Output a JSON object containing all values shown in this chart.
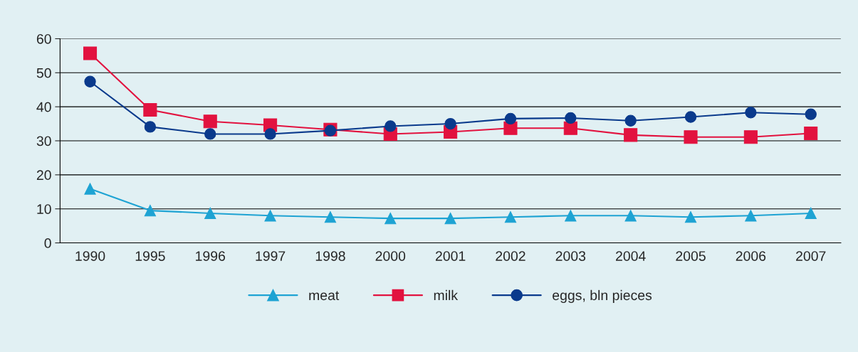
{
  "chart_data": {
    "type": "line",
    "categories": [
      "1990",
      "1995",
      "1996",
      "1997",
      "1998",
      "2000",
      "2001",
      "2002",
      "2003",
      "2004",
      "2005",
      "2006",
      "2007"
    ],
    "series": [
      {
        "name": "meat",
        "color": "#1ea3d3",
        "marker": "triangle",
        "values": [
          15.9,
          9.5,
          8.7,
          8,
          7.6,
          7.2,
          7.2,
          7.6,
          8,
          8,
          7.6,
          8,
          8.7
        ]
      },
      {
        "name": "milk",
        "color": "#e2123f",
        "marker": "square",
        "values": [
          55.7,
          39.1,
          35.7,
          34.6,
          33.3,
          32,
          32.6,
          33.7,
          33.7,
          31.7,
          31.1,
          31.1,
          32.2
        ]
      },
      {
        "name": "eggs, bln pieces",
        "color": "#0a3a8c",
        "marker": "circle",
        "values": [
          47.4,
          34.1,
          32,
          32,
          33,
          34.3,
          35,
          36.5,
          36.7,
          35.9,
          37,
          38.3,
          37.8
        ]
      }
    ],
    "ylim": [
      0,
      60
    ],
    "yticks": [
      0,
      10,
      20,
      30,
      40,
      50,
      60
    ],
    "grid": "y",
    "legend": "bottom",
    "line_style": "solid"
  }
}
